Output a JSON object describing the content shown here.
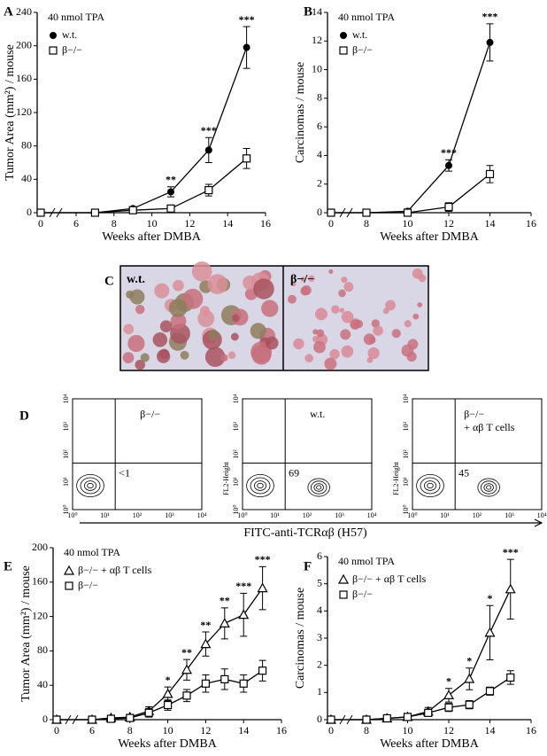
{
  "chart_data": [
    {
      "type": "line",
      "panel": "A",
      "annotation": "40 nmol TPA",
      "y_label": "Tumor Area (mm²) / mouse",
      "x_label": "Weeks after DMBA",
      "x": [
        0,
        7,
        9,
        11,
        13,
        15
      ],
      "xticks": [
        0,
        6,
        8,
        10,
        12,
        14,
        16
      ],
      "ylim": [
        0,
        240
      ],
      "yticks": [
        0,
        40,
        80,
        120,
        160,
        200,
        240
      ],
      "series": [
        {
          "name": "w.t.",
          "marker": "circle",
          "color": "#000000",
          "values": [
            0,
            0,
            5,
            25,
            75,
            198
          ],
          "errors": [
            null,
            null,
            2,
            6,
            15,
            25
          ]
        },
        {
          "name": "β−/−",
          "marker": "square",
          "color": "#000000",
          "values": [
            0,
            0,
            3,
            5,
            27,
            65
          ],
          "errors": [
            null,
            null,
            1,
            2,
            7,
            12
          ]
        }
      ],
      "stars": [
        null,
        null,
        null,
        "**",
        "***",
        "***"
      ]
    },
    {
      "type": "line",
      "panel": "B",
      "annotation": "40 nmol TPA",
      "y_label": "Carcinomas / mouse",
      "x_label": "Weeks after DMBA",
      "x": [
        0,
        8,
        10,
        12,
        14
      ],
      "xticks": [
        0,
        8,
        10,
        12,
        14,
        16
      ],
      "ylim": [
        0,
        14
      ],
      "yticks": [
        0,
        2,
        4,
        6,
        8,
        10,
        12,
        14
      ],
      "series": [
        {
          "name": "w.t.",
          "marker": "circle",
          "color": "#000000",
          "values": [
            0,
            0,
            0.1,
            3.3,
            11.9
          ],
          "errors": [
            null,
            null,
            null,
            0.4,
            1.3
          ]
        },
        {
          "name": "β−/−",
          "marker": "square",
          "color": "#000000",
          "values": [
            0,
            0,
            0,
            0.4,
            2.7
          ],
          "errors": [
            null,
            null,
            null,
            0.3,
            0.6
          ]
        }
      ],
      "stars": [
        null,
        null,
        null,
        "***",
        "***"
      ]
    },
    {
      "type": "line",
      "panel": "E",
      "annotation": "40 nmol TPA",
      "y_label": "Tumor Area (mm²) / mouse",
      "x_label": "Weeks after DMBA",
      "x": [
        0,
        6,
        7,
        8,
        9,
        10,
        11,
        12,
        13,
        14,
        15
      ],
      "xticks": [
        0,
        6,
        8,
        10,
        12,
        14,
        16
      ],
      "ylim": [
        0,
        200
      ],
      "yticks": [
        0,
        40,
        80,
        120,
        160,
        200
      ],
      "series": [
        {
          "name": "β−/− + αβ T cells",
          "marker": "triangle",
          "color": "#000000",
          "values": [
            0,
            0,
            2,
            3,
            10,
            30,
            58,
            88,
            112,
            122,
            153
          ],
          "errors": [
            null,
            null,
            null,
            null,
            5,
            8,
            12,
            14,
            18,
            25,
            25
          ]
        },
        {
          "name": "β−/−",
          "marker": "square",
          "color": "#000000",
          "values": [
            0,
            0,
            1,
            2,
            8,
            17,
            28,
            42,
            47,
            42,
            57
          ],
          "errors": [
            null,
            null,
            null,
            null,
            5,
            6,
            7,
            10,
            12,
            10,
            12
          ]
        }
      ],
      "stars": [
        null,
        null,
        null,
        null,
        null,
        "*",
        "**",
        "**",
        "**",
        "***",
        "***"
      ]
    },
    {
      "type": "line",
      "panel": "F",
      "annotation": "40 nmol TPA",
      "y_label": "Carcinomas / mouse",
      "x_label": "Weeks after DMBA",
      "x": [
        0,
        8,
        9,
        10,
        11,
        12,
        13,
        14,
        15
      ],
      "xticks": [
        0,
        8,
        10,
        12,
        14,
        16
      ],
      "ylim": [
        0,
        6
      ],
      "yticks": [
        0,
        1,
        2,
        3,
        4,
        5,
        6
      ],
      "series": [
        {
          "name": "β−/− + αβ T cells",
          "marker": "triangle",
          "color": "#000000",
          "values": [
            0,
            0,
            0.05,
            0.1,
            0.3,
            0.9,
            1.5,
            3.2,
            4.8
          ],
          "errors": [
            null,
            null,
            null,
            0.05,
            0.15,
            0.25,
            0.4,
            1.0,
            1.1
          ]
        },
        {
          "name": "β−/−",
          "marker": "square",
          "color": "#000000",
          "values": [
            0,
            0,
            0.05,
            0.1,
            0.25,
            0.45,
            0.55,
            1.05,
            1.55
          ],
          "errors": [
            null,
            null,
            null,
            null,
            0.1,
            0.15,
            0.15,
            0.15,
            0.25
          ]
        }
      ],
      "stars": [
        null,
        null,
        null,
        null,
        null,
        "*",
        "*",
        "*",
        "***"
      ]
    }
  ],
  "photo": {
    "panel": "C",
    "labels": [
      "w.t.",
      "β−/−"
    ]
  },
  "flow": {
    "panel": "D",
    "y_axis_label": "FL2-Height",
    "x_axis_label": "FITC-anti-TCRαβ (H57)",
    "tick_labels": [
      "10⁰",
      "10¹",
      "10²",
      "10³",
      "10⁴"
    ],
    "plots": [
      {
        "label": [
          "β−/−"
        ],
        "percent": "<1"
      },
      {
        "label": [
          "w.t."
        ],
        "percent": "69"
      },
      {
        "label": [
          "β−/−",
          "+ αβ T cells"
        ],
        "percent": "45"
      }
    ]
  }
}
